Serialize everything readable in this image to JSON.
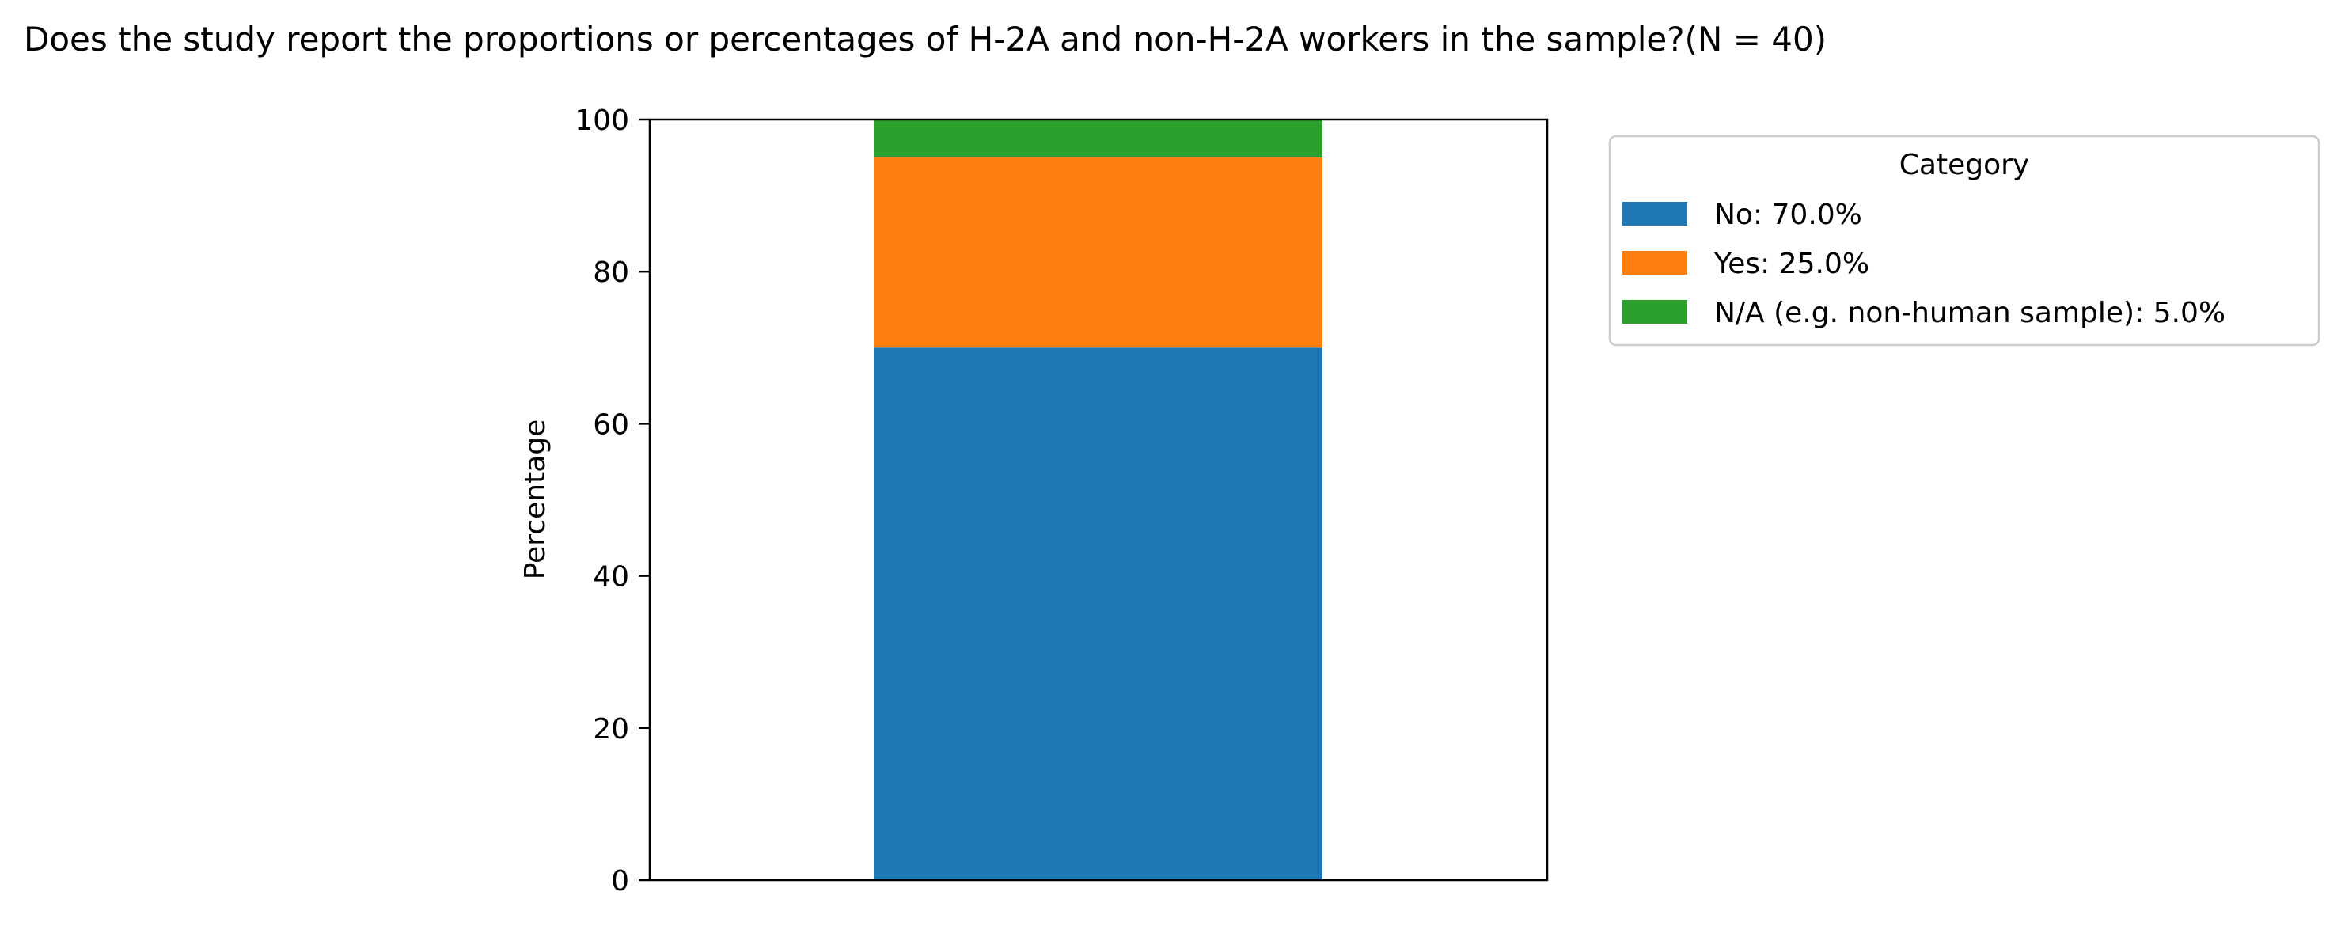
{
  "chart_data": {
    "type": "bar",
    "stacked": true,
    "title": "Does the study report the proportions or percentages of H-2A and non-H-2A workers in the sample?(N = 40)",
    "xlabel": "",
    "ylabel": "Percentage",
    "ylim": [
      0,
      100
    ],
    "yticks": [
      0,
      20,
      40,
      60,
      80,
      100
    ],
    "categories": [
      ""
    ],
    "grid": false,
    "legend": {
      "title": "Category",
      "placement": "outside-top-right"
    },
    "series": [
      {
        "name": "No: 70.0%",
        "values": [
          70.0
        ],
        "color": "#1f77b4"
      },
      {
        "name": "Yes: 25.0%",
        "values": [
          25.0
        ],
        "color": "#ff7f0e"
      },
      {
        "name": "N/A (e.g. non-human sample): 5.0%",
        "values": [
          5.0
        ],
        "color": "#2ca02c"
      }
    ]
  }
}
